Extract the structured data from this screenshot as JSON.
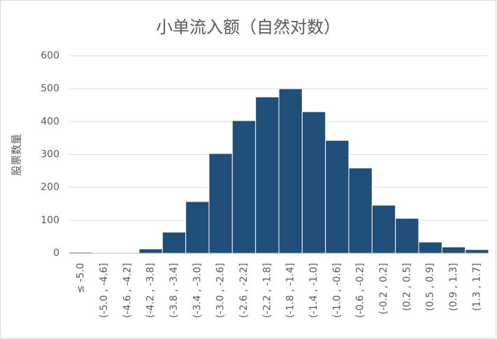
{
  "chart_data": {
    "type": "bar",
    "title": "小单流入额（自然对数）",
    "y_label": "股票数量",
    "categories": [
      "≤ -5.0",
      "(-5.0 , -4.6]",
      "(-4.6 , -4.2]",
      "(-4.2 , -3.8]",
      "(-3.8 , -3.4]",
      "(-3.4 , -3.0]",
      "(-3.0 , -2.6]",
      "(-2.6 , -2.2]",
      "(-2.2 , -1.8]",
      "(-1.8 , -1.4]",
      "(-1.4 , -1.0]",
      "(-1.0 , -0.6]",
      "(-0.6 , -0.2]",
      "(-0.2 , 0.2]",
      "(0.2 , 0.5]",
      "(0.5 , 0.9]",
      "(0.9 , 1.3]",
      "(1.3 , 1.7]"
    ],
    "values": [
      3,
      2,
      2,
      13,
      64,
      157,
      303,
      403,
      475,
      500,
      430,
      343,
      259,
      146,
      106,
      34,
      19,
      11
    ],
    "color": "#1f4e79",
    "ylim": [
      0,
      600
    ],
    "yticks": [
      0,
      100,
      200,
      300,
      400,
      500,
      600
    ],
    "grid": true
  }
}
